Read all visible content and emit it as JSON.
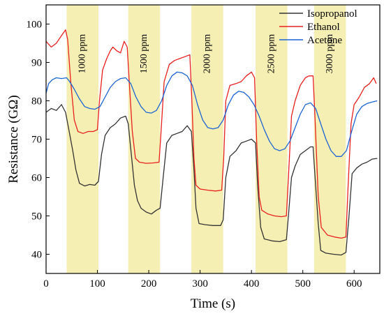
{
  "chart_data": {
    "type": "line",
    "xlabel": "Time (s)",
    "ylabel": "Resistance (GΩ)",
    "xlim": [
      0,
      650
    ],
    "ylim": [
      35,
      105
    ],
    "xticks": [
      0,
      100,
      200,
      300,
      400,
      500,
      600
    ],
    "yticks": [
      40,
      50,
      60,
      70,
      80,
      90,
      100
    ],
    "legend_position": "top-right",
    "grid": false,
    "bands": [
      {
        "label": "1000 ppm",
        "start": 40,
        "end": 102
      },
      {
        "label": "1500 ppm",
        "start": 160,
        "end": 222
      },
      {
        "label": "2000 ppm",
        "start": 283,
        "end": 345
      },
      {
        "label": "2500 ppm",
        "start": 408,
        "end": 470
      },
      {
        "label": "3000 ppm",
        "start": 522,
        "end": 584
      }
    ],
    "band_color": "#f6efb4",
    "series": [
      {
        "name": "Isopropanol",
        "color": "#333333",
        "points": [
          [
            0,
            77
          ],
          [
            10,
            78
          ],
          [
            20,
            77.5
          ],
          [
            30,
            79
          ],
          [
            38,
            77
          ],
          [
            45,
            72
          ],
          [
            52,
            67
          ],
          [
            58,
            62
          ],
          [
            65,
            58.5
          ],
          [
            75,
            57.8
          ],
          [
            85,
            58.2
          ],
          [
            95,
            58
          ],
          [
            102,
            59
          ],
          [
            108,
            66
          ],
          [
            115,
            71
          ],
          [
            125,
            73
          ],
          [
            135,
            74
          ],
          [
            145,
            75.5
          ],
          [
            155,
            76
          ],
          [
            160,
            74
          ],
          [
            166,
            66
          ],
          [
            172,
            58
          ],
          [
            178,
            54
          ],
          [
            185,
            52
          ],
          [
            195,
            51
          ],
          [
            205,
            50.5
          ],
          [
            215,
            51.5
          ],
          [
            222,
            52
          ],
          [
            228,
            60
          ],
          [
            235,
            69
          ],
          [
            245,
            71
          ],
          [
            255,
            71.5
          ],
          [
            265,
            72
          ],
          [
            275,
            73.5
          ],
          [
            283,
            72
          ],
          [
            288,
            62
          ],
          [
            292,
            52
          ],
          [
            298,
            48
          ],
          [
            310,
            47.7
          ],
          [
            325,
            47.5
          ],
          [
            340,
            47.5
          ],
          [
            345,
            49
          ],
          [
            350,
            60
          ],
          [
            358,
            65.5
          ],
          [
            370,
            67
          ],
          [
            380,
            69
          ],
          [
            390,
            69.5
          ],
          [
            400,
            70
          ],
          [
            408,
            69
          ],
          [
            412,
            58
          ],
          [
            418,
            47
          ],
          [
            425,
            44
          ],
          [
            440,
            43.5
          ],
          [
            455,
            43.3
          ],
          [
            468,
            43.8
          ],
          [
            472,
            50
          ],
          [
            478,
            60
          ],
          [
            485,
            63
          ],
          [
            495,
            66
          ],
          [
            505,
            67
          ],
          [
            515,
            68
          ],
          [
            520,
            68
          ],
          [
            524,
            60
          ],
          [
            530,
            48
          ],
          [
            535,
            41
          ],
          [
            545,
            40.3
          ],
          [
            560,
            40
          ],
          [
            575,
            39.8
          ],
          [
            584,
            40.5
          ],
          [
            590,
            50
          ],
          [
            596,
            61
          ],
          [
            605,
            62.5
          ],
          [
            615,
            63.5
          ],
          [
            625,
            64
          ],
          [
            635,
            64.8
          ],
          [
            645,
            65
          ]
        ]
      },
      {
        "name": "Ethanol",
        "color": "#e8201e",
        "points": [
          [
            0,
            95.5
          ],
          [
            10,
            94
          ],
          [
            20,
            95
          ],
          [
            30,
            97
          ],
          [
            38,
            98.5
          ],
          [
            42,
            96
          ],
          [
            48,
            85
          ],
          [
            55,
            75
          ],
          [
            62,
            72
          ],
          [
            72,
            71.5
          ],
          [
            82,
            72
          ],
          [
            92,
            72
          ],
          [
            100,
            72.5
          ],
          [
            104,
            80
          ],
          [
            110,
            88
          ],
          [
            118,
            91
          ],
          [
            125,
            93
          ],
          [
            130,
            94
          ],
          [
            138,
            93
          ],
          [
            145,
            92.5
          ],
          [
            152,
            95.5
          ],
          [
            158,
            94
          ],
          [
            162,
            85
          ],
          [
            168,
            72
          ],
          [
            174,
            65
          ],
          [
            182,
            64
          ],
          [
            195,
            63.7
          ],
          [
            208,
            63.8
          ],
          [
            220,
            64
          ],
          [
            224,
            72
          ],
          [
            230,
            85
          ],
          [
            240,
            89.5
          ],
          [
            250,
            90.5
          ],
          [
            260,
            91
          ],
          [
            270,
            91.5
          ],
          [
            280,
            92
          ],
          [
            284,
            80
          ],
          [
            288,
            65
          ],
          [
            292,
            58
          ],
          [
            300,
            57
          ],
          [
            315,
            56.7
          ],
          [
            330,
            56.5
          ],
          [
            342,
            56.7
          ],
          [
            346,
            65
          ],
          [
            350,
            80
          ],
          [
            358,
            84
          ],
          [
            370,
            84.5
          ],
          [
            380,
            85
          ],
          [
            390,
            86.5
          ],
          [
            400,
            87.5
          ],
          [
            406,
            86
          ],
          [
            410,
            70
          ],
          [
            415,
            55
          ],
          [
            420,
            51.5
          ],
          [
            432,
            50.5
          ],
          [
            445,
            50
          ],
          [
            458,
            49.8
          ],
          [
            468,
            50
          ],
          [
            472,
            60
          ],
          [
            478,
            76
          ],
          [
            485,
            80
          ],
          [
            495,
            84
          ],
          [
            505,
            86
          ],
          [
            512,
            86.5
          ],
          [
            520,
            86.5
          ],
          [
            524,
            75
          ],
          [
            530,
            55
          ],
          [
            536,
            47
          ],
          [
            548,
            45
          ],
          [
            562,
            44.5
          ],
          [
            575,
            44.2
          ],
          [
            584,
            44.5
          ],
          [
            588,
            57
          ],
          [
            594,
            74
          ],
          [
            600,
            79
          ],
          [
            610,
            81
          ],
          [
            620,
            83.5
          ],
          [
            630,
            84.5
          ],
          [
            638,
            86
          ],
          [
            643,
            84.5
          ]
        ]
      },
      {
        "name": "Acetone",
        "color": "#1c64d3",
        "points": [
          [
            0,
            82
          ],
          [
            5,
            84.5
          ],
          [
            12,
            85.5
          ],
          [
            20,
            86
          ],
          [
            30,
            85.8
          ],
          [
            40,
            86
          ],
          [
            46,
            85
          ],
          [
            55,
            83
          ],
          [
            65,
            80.5
          ],
          [
            75,
            78.5
          ],
          [
            85,
            78
          ],
          [
            95,
            77.8
          ],
          [
            105,
            78.5
          ],
          [
            115,
            81
          ],
          [
            125,
            83.5
          ],
          [
            135,
            85
          ],
          [
            145,
            85.8
          ],
          [
            155,
            86
          ],
          [
            165,
            84.5
          ],
          [
            175,
            81
          ],
          [
            185,
            78.5
          ],
          [
            195,
            77
          ],
          [
            205,
            76.8
          ],
          [
            215,
            77.5
          ],
          [
            225,
            80
          ],
          [
            235,
            84
          ],
          [
            245,
            86.5
          ],
          [
            255,
            87.5
          ],
          [
            265,
            87.3
          ],
          [
            275,
            86.5
          ],
          [
            285,
            84
          ],
          [
            295,
            79
          ],
          [
            305,
            75
          ],
          [
            315,
            73
          ],
          [
            325,
            72.7
          ],
          [
            335,
            73
          ],
          [
            345,
            75
          ],
          [
            355,
            79
          ],
          [
            365,
            81.5
          ],
          [
            375,
            82.5
          ],
          [
            385,
            82.2
          ],
          [
            395,
            81
          ],
          [
            405,
            79
          ],
          [
            415,
            76
          ],
          [
            425,
            72.5
          ],
          [
            435,
            69.5
          ],
          [
            445,
            67.5
          ],
          [
            455,
            67
          ],
          [
            465,
            67.5
          ],
          [
            475,
            69.5
          ],
          [
            485,
            73
          ],
          [
            495,
            76.5
          ],
          [
            505,
            79
          ],
          [
            515,
            79.5
          ],
          [
            525,
            78
          ],
          [
            535,
            74
          ],
          [
            545,
            70
          ],
          [
            555,
            67
          ],
          [
            565,
            65.5
          ],
          [
            575,
            65.5
          ],
          [
            585,
            67
          ],
          [
            595,
            72
          ],
          [
            605,
            76.5
          ],
          [
            615,
            78.5
          ],
          [
            625,
            79.3
          ],
          [
            635,
            79.7
          ],
          [
            645,
            80
          ]
        ]
      }
    ]
  }
}
